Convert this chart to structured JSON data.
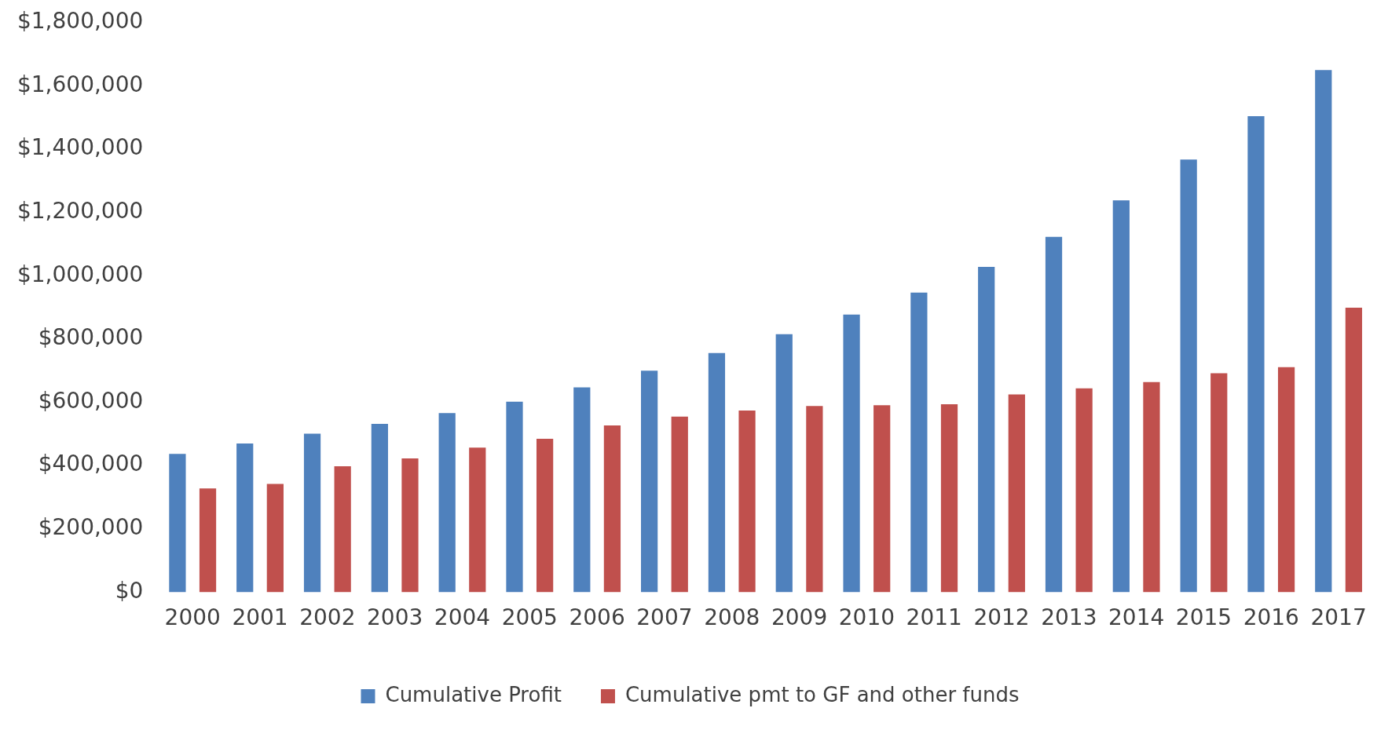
{
  "chart_data": {
    "type": "bar",
    "categories": [
      "2000",
      "2001",
      "2002",
      "2003",
      "2004",
      "2005",
      "2006",
      "2007",
      "2008",
      "2009",
      "2010",
      "2011",
      "2012",
      "2013",
      "2014",
      "2015",
      "2016",
      "2017"
    ],
    "series": [
      {
        "name": "Cumulative Profit",
        "color": "#4f81bd",
        "values": [
          437000,
          470000,
          501000,
          532000,
          566000,
          602000,
          647000,
          700000,
          756000,
          815000,
          877000,
          947000,
          1028000,
          1123000,
          1238000,
          1367000,
          1504000,
          1650000
        ]
      },
      {
        "name": "Cumulative pmt to GF and other funds",
        "color": "#c0504d",
        "values": [
          328000,
          342000,
          398000,
          423000,
          457000,
          485000,
          527000,
          555000,
          574000,
          588000,
          591000,
          594000,
          625000,
          644000,
          664000,
          692000,
          711000,
          899000
        ]
      }
    ],
    "ylim": [
      0,
      1800000
    ],
    "yticks": [
      {
        "value": 0,
        "label": "$0"
      },
      {
        "value": 200000,
        "label": "$200,000"
      },
      {
        "value": 400000,
        "label": "$400,000"
      },
      {
        "value": 600000,
        "label": "$600,000"
      },
      {
        "value": 800000,
        "label": "$800,000"
      },
      {
        "value": 1000000,
        "label": "$1,000,000"
      },
      {
        "value": 1200000,
        "label": "$1,200,000"
      },
      {
        "value": 1400000,
        "label": "$1,400,000"
      },
      {
        "value": 1600000,
        "label": "$1,600,000"
      },
      {
        "value": 1800000,
        "label": "$1,800,000"
      }
    ],
    "grid": false,
    "legend": "bottom"
  }
}
